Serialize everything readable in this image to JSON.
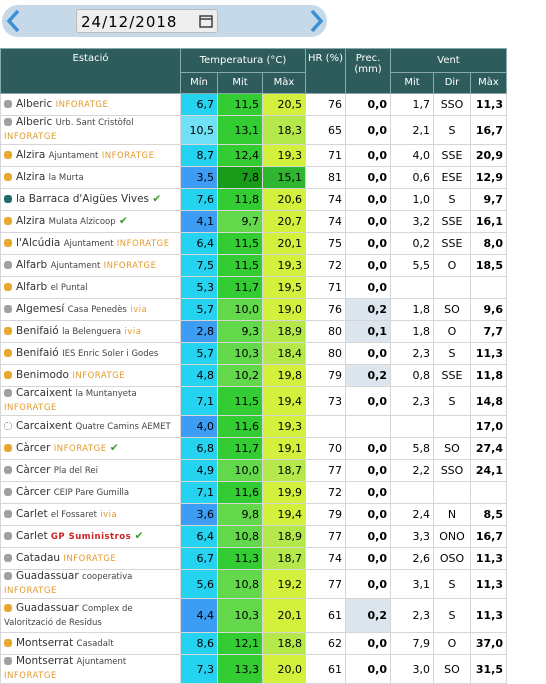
{
  "date": "24/12/2018",
  "header": {
    "station": "Estació",
    "temperature": "Temperatura (°C)",
    "humidity": "HR (%)",
    "precipitation": "Prec. (mm)",
    "wind": "Vent",
    "temp_cols": [
      "Mín",
      "Mit",
      "Màx"
    ],
    "wind_cols": [
      "Mit",
      "Dir",
      "Màx"
    ]
  },
  "rows": [
    {
      "dot": "#a0a0a0",
      "name": "Alberic",
      "source": "INFORATGE",
      "cells": [
        "6,7",
        "11,5",
        "20,5",
        "76",
        "0,0",
        "1,7",
        "SSO",
        "11,3"
      ]
    },
    {
      "dot": "#a0a0a0",
      "name": "Alberic",
      "place": "Urb. Sant Cristòfol",
      "source": "INFORATGE",
      "cells": [
        "10,5",
        "13,1",
        "18,3",
        "65",
        "0,0",
        "2,1",
        "S",
        "16,7"
      ]
    },
    {
      "dot": "#e8a830",
      "name": "Alzira",
      "place": "Ajuntament",
      "source": "INFORATGE",
      "cells": [
        "8,7",
        "12,4",
        "19,3",
        "71",
        "0,0",
        "4,0",
        "SSE",
        "20,9"
      ]
    },
    {
      "dot": "#e8a830",
      "name": "Alzira",
      "place": "la Murta",
      "cells": [
        "3,5",
        "7,8",
        "15,1",
        "81",
        "0,0",
        "0,6",
        "ESE",
        "12,9"
      ]
    },
    {
      "dot": "#1f6b6b",
      "name": "la Barraca d'Aigües Vives",
      "check": true,
      "cells": [
        "7,6",
        "11,8",
        "20,6",
        "74",
        "0,0",
        "1,0",
        "S",
        "9,7"
      ]
    },
    {
      "dot": "#e8a830",
      "name": "Alzira",
      "place": "Mulata Alzicoop",
      "check": true,
      "cells": [
        "4,1",
        "9,7",
        "20,7",
        "74",
        "0,0",
        "3,2",
        "SSE",
        "16,1"
      ]
    },
    {
      "dot": "#e8a830",
      "name": "l'Alcúdia",
      "place": "Ajuntament",
      "source": "INFORATGE",
      "cells": [
        "6,4",
        "11,5",
        "20,1",
        "75",
        "0,0",
        "0,2",
        "SSE",
        "8,0"
      ]
    },
    {
      "dot": "#a0a0a0",
      "name": "Alfarb",
      "place": "Ajuntament",
      "source": "INFORATGE",
      "cells": [
        "7,5",
        "11,5",
        "19,3",
        "72",
        "0,0",
        "5,5",
        "O",
        "18,5"
      ]
    },
    {
      "dot": "#e8a830",
      "name": "Alfarb",
      "place": "el Puntal",
      "cells": [
        "5,3",
        "11,7",
        "19,5",
        "71",
        "0,0",
        null,
        null,
        null
      ]
    },
    {
      "dot": "#a0a0a0",
      "name": "Algemesí",
      "place": "Casa Penedès",
      "source": "ivia",
      "cells": [
        "5,7",
        "10,0",
        "19,0",
        "76",
        "0,2",
        "1,8",
        "SO",
        "9,6"
      ]
    },
    {
      "dot": "#e8a830",
      "name": "Benifaió",
      "place": "la Belenguera",
      "source": "ivia",
      "cells": [
        "2,8",
        "9,3",
        "18,9",
        "80",
        "0,1",
        "1,8",
        "O",
        "7,7"
      ]
    },
    {
      "dot": "#e8a830",
      "name": "Benifaió",
      "place": "IES Enric Soler i Godes",
      "cells": [
        "5,7",
        "10,3",
        "18,4",
        "80",
        "0,0",
        "2,3",
        "S",
        "11,3"
      ]
    },
    {
      "dot": "#e8a830",
      "name": "Benimodo",
      "source": "INFORATGE",
      "cells": [
        "4,8",
        "10,2",
        "19,8",
        "79",
        "0,2",
        "0,8",
        "SSE",
        "11,8"
      ]
    },
    {
      "dot": "#a0a0a0",
      "name": "Carcaixent",
      "place": "la Muntanyeta",
      "source": "INFORATGE",
      "cells": [
        "7,1",
        "11,5",
        "19,4",
        "73",
        "0,0",
        "2,3",
        "S",
        "14,8"
      ]
    },
    {
      "dot": "#ffffff",
      "name": "Carcaixent",
      "place": "Quatre Camins AEMET",
      "cells": [
        "4,0",
        "11,6",
        "19,3",
        null,
        null,
        null,
        null,
        "17,0"
      ]
    },
    {
      "dot": "#e8a830",
      "name": "Càrcer",
      "source": "INFORATGE",
      "check": true,
      "cells": [
        "6,8",
        "11,7",
        "19,1",
        "70",
        "0,0",
        "5,8",
        "SO",
        "27,4"
      ]
    },
    {
      "dot": "#a0a0a0",
      "name": "Càrcer",
      "place": "Pla del Rei",
      "cells": [
        "4,9",
        "10,0",
        "18,7",
        "77",
        "0,0",
        "2,2",
        "SSO",
        "24,1"
      ]
    },
    {
      "dot": "#a0a0a0",
      "name": "Càrcer",
      "place": "CEIP Pare Gumilla",
      "cells": [
        "7,1",
        "11,6",
        "19,9",
        "72",
        "0,0",
        null,
        null,
        null
      ]
    },
    {
      "dot": "#a0a0a0",
      "name": "Carlet",
      "place": "el Fossaret",
      "source": "ivia",
      "cells": [
        "3,6",
        "9,8",
        "19,4",
        "79",
        "0,0",
        "2,4",
        "N",
        "8,5"
      ]
    },
    {
      "dot": "#a0a0a0",
      "name": "Carlet",
      "source": "GP Suministros",
      "check": true,
      "cells": [
        "6,4",
        "10,8",
        "18,9",
        "77",
        "0,0",
        "3,3",
        "ONO",
        "16,7"
      ]
    },
    {
      "dot": "#a0a0a0",
      "name": "Catadau",
      "source": "INFORATGE",
      "cells": [
        "6,7",
        "11,3",
        "18,7",
        "74",
        "0,0",
        "2,6",
        "OSO",
        "11,3"
      ]
    },
    {
      "dot": "#a0a0a0",
      "name": "Guadassuar",
      "place": "cooperativa",
      "source": "INFORATGE",
      "cells": [
        "5,6",
        "10,8",
        "19,2",
        "77",
        "0,0",
        "3,1",
        "S",
        "11,3"
      ]
    },
    {
      "dot": "#e8a830",
      "name": "Guadassuar",
      "place": "Complex de Valorització de Residus",
      "cells": [
        "4,4",
        "10,3",
        "20,1",
        "61",
        "0,2",
        "2,3",
        "S",
        "11,3"
      ]
    },
    {
      "dot": "#e8a830",
      "name": "Montserrat",
      "place": "Casadalt",
      "cells": [
        "8,6",
        "12,1",
        "18,8",
        "62",
        "0,0",
        "7,9",
        "O",
        "37,0"
      ]
    },
    {
      "dot": "#a0a0a0",
      "name": "Montserrat",
      "place": "Ajuntament",
      "source": "INFORATGE",
      "cells": [
        "7,3",
        "13,3",
        "20,0",
        "61",
        "0,0",
        "3,0",
        "SO",
        "31,5"
      ]
    }
  ]
}
